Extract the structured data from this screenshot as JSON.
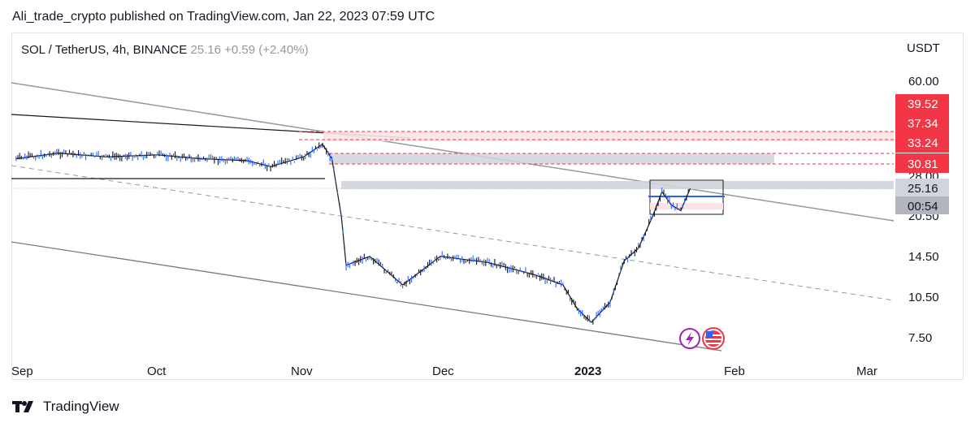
{
  "header": {
    "published_by": "Ali_trade_crypto published on TradingView.com, Jan 22, 2023 07:59 UTC"
  },
  "legend": {
    "symbol": "SOL / TetherUS, 4h, BINANCE",
    "last_price": "25.16",
    "change": "+0.59 (+2.40%)"
  },
  "price_axis": {
    "currency": "USDT",
    "ticks": [
      "60.00",
      "28.00",
      "20.50",
      "14.50",
      "10.50",
      "7.50"
    ]
  },
  "time_axis": {
    "labels": [
      "Sep",
      "Oct",
      "Nov",
      "Dec",
      "2023",
      "Feb",
      "Mar"
    ]
  },
  "price_tags": {
    "levels": [
      "39.52",
      "37.34",
      "33.24",
      "30.81"
    ],
    "current": "25.16",
    "countdown": "00:54"
  },
  "footer": {
    "brand": "TradingView"
  },
  "colors": {
    "candle_up": "#131722",
    "candle_down": "#2962ff",
    "resistance_tag": "#f23645",
    "current_tag": "#b2b5be",
    "trend_line": "#9598a1",
    "zone": "#d1d4dc"
  },
  "chart_data": {
    "type": "line",
    "title": "SOL / TetherUS, 4h, BINANCE",
    "scale": "log",
    "x_labels": [
      "Sep",
      "Oct",
      "Nov",
      "Dec",
      "2023",
      "Feb",
      "Mar"
    ],
    "y_ticks": [
      60.0,
      28.0,
      20.5,
      14.5,
      10.5,
      7.5
    ],
    "series": [
      {
        "x": [
          "2022-09-01",
          "2022-09-10",
          "2022-09-20",
          "2022-10-01",
          "2022-10-10",
          "2022-10-20",
          "2022-10-25",
          "2022-11-01",
          "2022-11-05",
          "2022-11-07",
          "2022-11-09",
          "2022-11-10",
          "2022-11-15",
          "2022-11-22",
          "2022-11-30",
          "2022-12-10",
          "2022-12-20",
          "2022-12-26",
          "2022-12-29",
          "2023-01-01",
          "2023-01-05",
          "2023-01-08",
          "2023-01-11",
          "2023-01-14",
          "2023-01-16",
          "2023-01-18",
          "2023-01-20",
          "2023-01-22"
        ],
        "values": [
          32.0,
          33.5,
          32.5,
          33.0,
          32.0,
          31.5,
          30.0,
          32.5,
          36.0,
          32.0,
          20.0,
          13.5,
          14.5,
          11.5,
          14.5,
          13.8,
          12.5,
          11.5,
          9.5,
          8.5,
          10.0,
          14.0,
          15.5,
          20.0,
          24.5,
          22.0,
          21.0,
          25.16
        ]
      }
    ],
    "horizontal_levels": [
      39.52,
      37.34,
      33.24,
      30.81,
      25.16
    ],
    "last_price": 25.16,
    "change": 0.59,
    "change_percent": 2.4,
    "legend_position": "top-left",
    "grid": false
  }
}
